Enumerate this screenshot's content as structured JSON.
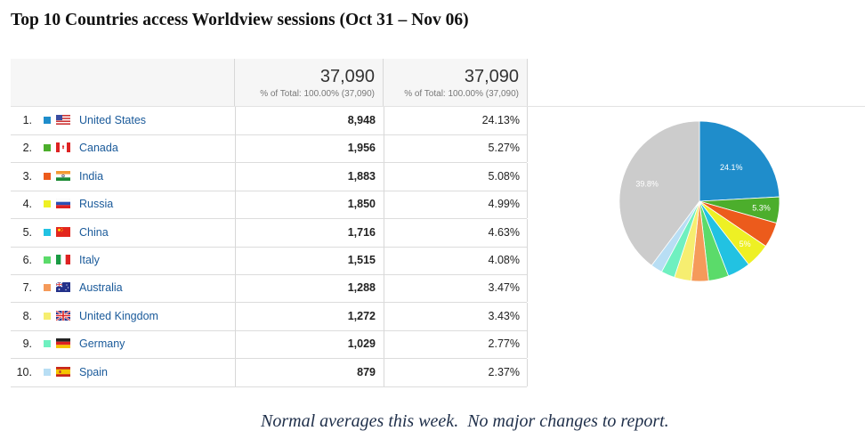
{
  "title": "Top 10 Countries access Worldview sessions (Oct 31 – Nov 06)",
  "header": {
    "sessions_total": "37,090",
    "sessions_sub": "% of Total: 100.00% (37,090)",
    "pct_total": "37,090",
    "pct_sub": "% of Total: 100.00% (37,090)"
  },
  "rows": [
    {
      "rank": "1.",
      "country": "United States",
      "sessions": "8,948",
      "percent": "24.13%",
      "color": "#1f8dcb",
      "flag": "us-flag-icon"
    },
    {
      "rank": "2.",
      "country": "Canada",
      "sessions": "1,956",
      "percent": "5.27%",
      "color": "#4cae2c",
      "flag": "ca-flag-icon"
    },
    {
      "rank": "3.",
      "country": "India",
      "sessions": "1,883",
      "percent": "5.08%",
      "color": "#ec5b1c",
      "flag": "in-flag-icon"
    },
    {
      "rank": "4.",
      "country": "Russia",
      "sessions": "1,850",
      "percent": "4.99%",
      "color": "#eef024",
      "flag": "ru-flag-icon"
    },
    {
      "rank": "5.",
      "country": "China",
      "sessions": "1,716",
      "percent": "4.63%",
      "color": "#22c2e2",
      "flag": "cn-flag-icon"
    },
    {
      "rank": "6.",
      "country": "Italy",
      "sessions": "1,515",
      "percent": "4.08%",
      "color": "#5bdb6a",
      "flag": "it-flag-icon"
    },
    {
      "rank": "7.",
      "country": "Australia",
      "sessions": "1,288",
      "percent": "3.47%",
      "color": "#f59a5a",
      "flag": "au-flag-icon"
    },
    {
      "rank": "8.",
      "country": "United Kingdom",
      "sessions": "1,272",
      "percent": "3.43%",
      "color": "#f6ee70",
      "flag": "uk-flag-icon"
    },
    {
      "rank": "9.",
      "country": "Germany",
      "sessions": "1,029",
      "percent": "2.77%",
      "color": "#6ff0c0",
      "flag": "de-flag-icon"
    },
    {
      "rank": "10.",
      "country": "Spain",
      "sessions": "879",
      "percent": "2.37%",
      "color": "#b8def4",
      "flag": "es-flag-icon"
    }
  ],
  "pie": {
    "other_color": "#cccccc",
    "other_label": "39.8%",
    "labels": [
      "24.1%",
      "5.3%",
      "5%"
    ]
  },
  "note": "Normal averages this week.  No major changes to report.",
  "chart_data": {
    "type": "pie",
    "categories": [
      "United States",
      "Canada",
      "India",
      "Russia",
      "China",
      "Italy",
      "Australia",
      "United Kingdom",
      "Germany",
      "Spain",
      "Other"
    ],
    "values": [
      24.13,
      5.27,
      5.08,
      4.99,
      4.63,
      4.08,
      3.47,
      3.43,
      2.77,
      2.37,
      39.78
    ]
  }
}
